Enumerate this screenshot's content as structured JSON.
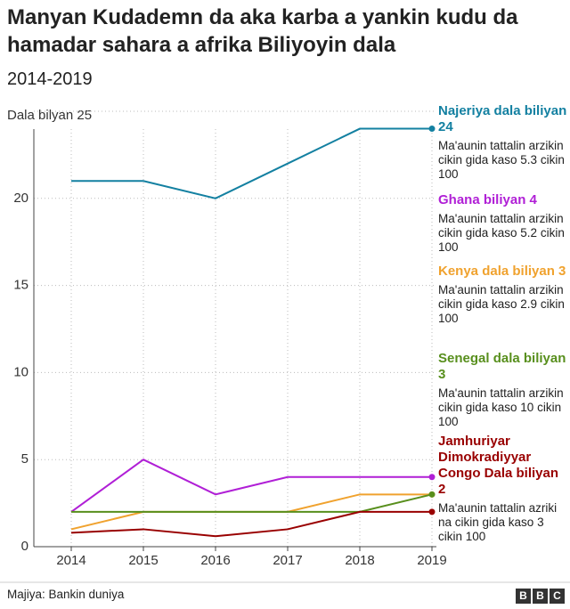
{
  "chart_data": {
    "type": "line",
    "title": "Manyan Kudademn da aka karba a yankin kudu da hamadar sahara a afrika Biliyoyin dala",
    "subtitle": "2014-2019",
    "categories": [
      "2014",
      "2015",
      "2016",
      "2017",
      "2018",
      "2019"
    ],
    "ylim": [
      0,
      25
    ],
    "yticks": [
      0,
      5,
      10,
      15,
      20,
      {
        "value": 25,
        "label": "Dala bilyan 25"
      }
    ],
    "grid": true,
    "series": [
      {
        "name": "Najeriya dala biliyan 24",
        "note": "Ma'aunin tattalin arzikin cikin gida kaso 5.3 cikin 100",
        "color": "#1380a1",
        "values": [
          21,
          21,
          20,
          22,
          24,
          24
        ]
      },
      {
        "name": "Ghana biliyan 4",
        "note": "Ma'aunin tattalin arzikin cikin gida kaso 5.2 cikin 100",
        "color": "#b01fd6",
        "values": [
          2,
          5,
          3,
          4,
          4,
          4
        ]
      },
      {
        "name": "Kenya dala biliyan 3",
        "note": "Ma'aunin tattalin arzikin cikin gida kaso 2.9 cikin 100",
        "color": "#f0a22e",
        "values": [
          1,
          2,
          2,
          2,
          3,
          3
        ]
      },
      {
        "name": "Senegal dala biliyan 3",
        "note": "Ma'aunin tattalin arzikin cikin gida kaso 10 cikin 100",
        "color": "#588f1d",
        "values": [
          2,
          2,
          2,
          2,
          2,
          3
        ]
      },
      {
        "name": "Jamhuriyar Dimokradiyyar Congo Dala biliyan 2",
        "note": "Ma'aunin tattalin azriki na cikin gida kaso 3 cikin 100",
        "color": "#990000",
        "values": [
          0.8,
          1,
          0.6,
          1,
          2,
          2
        ]
      }
    ],
    "source": "Majiya: Bankin duniya",
    "logo": [
      "B",
      "B",
      "C"
    ]
  }
}
